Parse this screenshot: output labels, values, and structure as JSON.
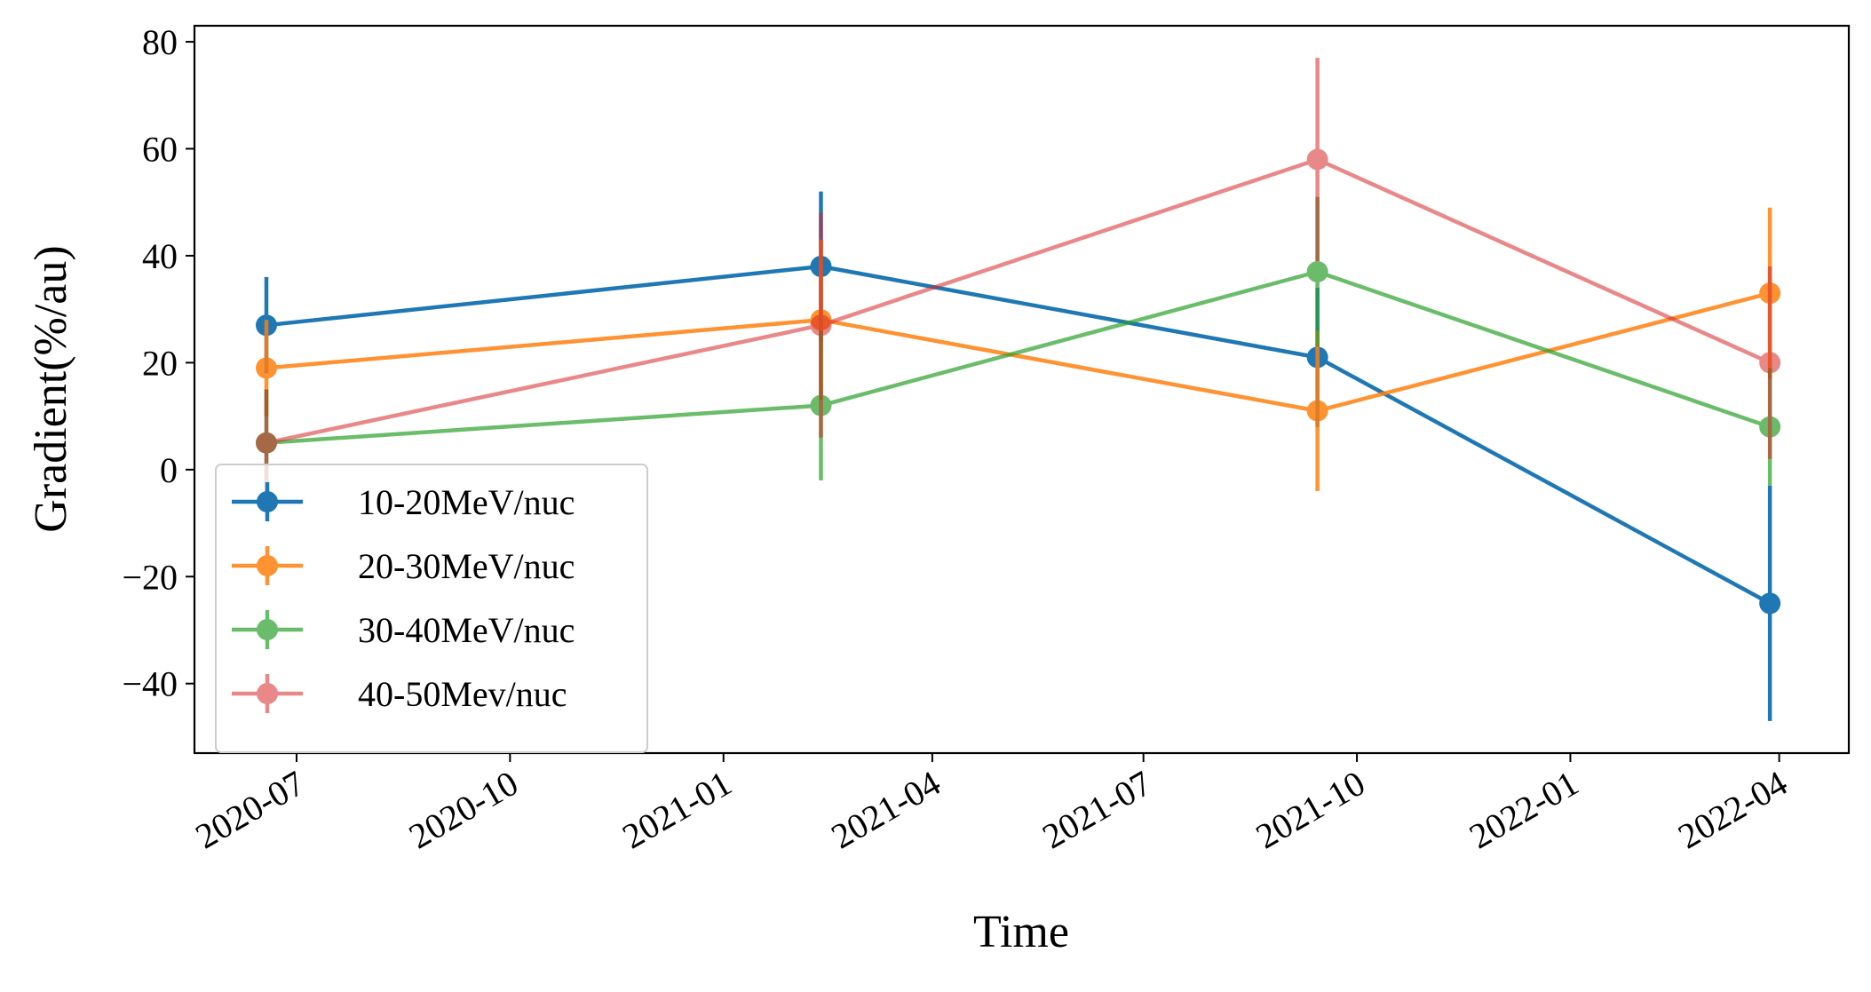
{
  "chart_data": {
    "type": "line",
    "xlabel": "Time",
    "ylabel": "Gradient(%/au)",
    "x_axis_type": "date",
    "xlim": [
      "2020-05-18",
      "2022-05-01"
    ],
    "ylim": [
      -53,
      83
    ],
    "x_ticks": [
      "2020-07",
      "2020-10",
      "2021-01",
      "2021-04",
      "2021-07",
      "2021-10",
      "2022-01",
      "2022-04"
    ],
    "x_tick_dates": [
      "2020-07-01",
      "2020-10-01",
      "2021-01-01",
      "2021-04-01",
      "2021-07-01",
      "2021-10-01",
      "2022-01-01",
      "2022-04-01"
    ],
    "y_ticks": [
      -40,
      -20,
      0,
      20,
      40,
      60,
      80
    ],
    "y_tick_labels": [
      "−40",
      "−20",
      "0",
      "20",
      "40",
      "60",
      "80"
    ],
    "x": [
      "2020-06-18",
      "2021-02-12",
      "2021-09-14",
      "2022-03-28"
    ],
    "grid": false,
    "legend_position": "lower-left",
    "series": [
      {
        "name": "10-20MeV/nuc",
        "color": "#1f77b4",
        "alpha": 1.0,
        "values": [
          27,
          38,
          21,
          -25
        ],
        "errors": [
          9,
          14,
          13,
          22
        ]
      },
      {
        "name": "20-30MeV/nuc",
        "color": "#ff7f0e",
        "alpha": 0.85,
        "values": [
          19,
          28,
          11,
          33
        ],
        "errors": [
          9,
          15,
          15,
          16
        ]
      },
      {
        "name": "30-40MeV/nuc",
        "color": "#2ca02c",
        "alpha": 0.7,
        "values": [
          5,
          12,
          37,
          8
        ],
        "errors": [
          10,
          14,
          14,
          11
        ]
      },
      {
        "name": "40-50Mev/nuc",
        "color": "#d62728",
        "alpha": 0.55,
        "values": [
          5,
          27,
          58,
          20
        ],
        "errors": [
          10,
          21,
          19,
          18
        ]
      }
    ]
  }
}
